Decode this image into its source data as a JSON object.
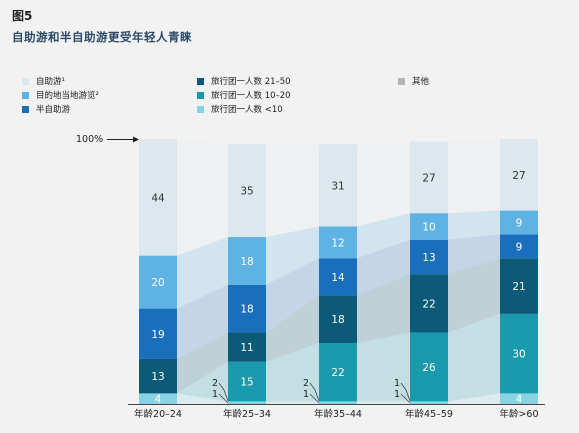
{
  "figure": {
    "label": "图5",
    "title": "自助游和半自助游更受年轻人青睐"
  },
  "legend": [
    {
      "name": "自助游¹",
      "color": "#dde7ee"
    },
    {
      "name": "目的地当地游览²",
      "color": "#5eb3e4"
    },
    {
      "name": "半自助游",
      "color": "#1a6fbd"
    },
    {
      "name": "旅行团一人数  21–50",
      "color": "#0b5b78"
    },
    {
      "name": "旅行团一人数  10–20",
      "color": "#1a9aad"
    },
    {
      "name": "旅行团一人数  <10",
      "color": "#88d3e3"
    },
    {
      "name": "其他",
      "color": "#b5b5b5"
    }
  ],
  "chart_data": {
    "type": "bar",
    "stacked": true,
    "percent_label": "100%",
    "categories": [
      "年龄20–24",
      "年龄25–34",
      "年龄35–44",
      "年龄45–59",
      "年龄>60"
    ],
    "series": [
      {
        "name": "旅行团一人数  <10",
        "values": [
          4,
          1,
          1,
          1,
          4
        ],
        "color": "#88d3e3"
      },
      {
        "name": "旅行团一人数  10–20",
        "values": [
          0,
          15,
          22,
          26,
          30
        ],
        "color": "#1a9aad"
      },
      {
        "name": "旅行团一人数  21–50",
        "values": [
          13,
          11,
          18,
          22,
          21
        ],
        "color": "#0b5b78"
      },
      {
        "name": "半自助游",
        "values": [
          19,
          18,
          14,
          13,
          9
        ],
        "color": "#1a6fbd"
      },
      {
        "name": "目的地当地游览²",
        "values": [
          20,
          18,
          12,
          10,
          9
        ],
        "color": "#5eb3e4"
      },
      {
        "name": "自助游¹",
        "values": [
          44,
          35,
          31,
          27,
          27
        ],
        "color": "#dde7ee"
      }
    ],
    "outside_labels": [
      {
        "category_index": 1,
        "values": [
          "2",
          "1"
        ]
      },
      {
        "category_index": 2,
        "values": [
          "2",
          "1"
        ]
      },
      {
        "category_index": 3,
        "values": [
          "1",
          "1"
        ]
      }
    ],
    "ylim": [
      0,
      100
    ]
  }
}
